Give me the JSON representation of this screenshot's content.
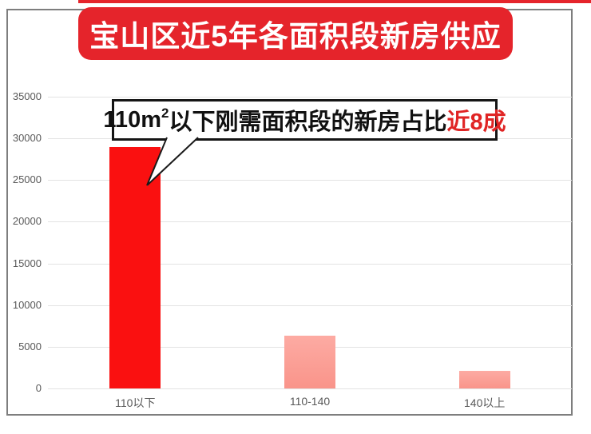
{
  "banner": {
    "title": "宝山区近5年各面积段新房供应",
    "bg_color": "#e5242b",
    "text_color": "#ffffff"
  },
  "callout": {
    "prefix": "110m",
    "superscript": "2",
    "body": "以下刚需面积段的新房占比",
    "highlight": "近8成",
    "highlight_color": "#e02424"
  },
  "chart_data": {
    "type": "bar",
    "title": "宝山区近5年各面积段新房供应",
    "categories": [
      "110以下",
      "110-140",
      "140以上"
    ],
    "values": [
      29000,
      6300,
      2100
    ],
    "ylim": [
      0,
      35000
    ],
    "yticks": [
      0,
      5000,
      10000,
      15000,
      20000,
      25000,
      30000,
      35000
    ],
    "xlabel": "",
    "ylabel": "",
    "grid": true,
    "legend": "none",
    "annotation": "110m²以下刚需面积段的新房占比近8成"
  },
  "colors": {
    "banner": "#e5242b",
    "top_strip": "#e5242b",
    "frame_border": "#7e7e7e",
    "gridline": "#e3e3e3",
    "axis_text": "#595959",
    "callout_border": "#151515",
    "highlight_text": "#e02424",
    "bars": [
      {
        "solid": "#fa1010"
      },
      {
        "gradient": [
          "#fdaba3",
          "#f9948a"
        ]
      },
      {
        "gradient": [
          "#fdaba3",
          "#f9948a"
        ]
      }
    ]
  }
}
